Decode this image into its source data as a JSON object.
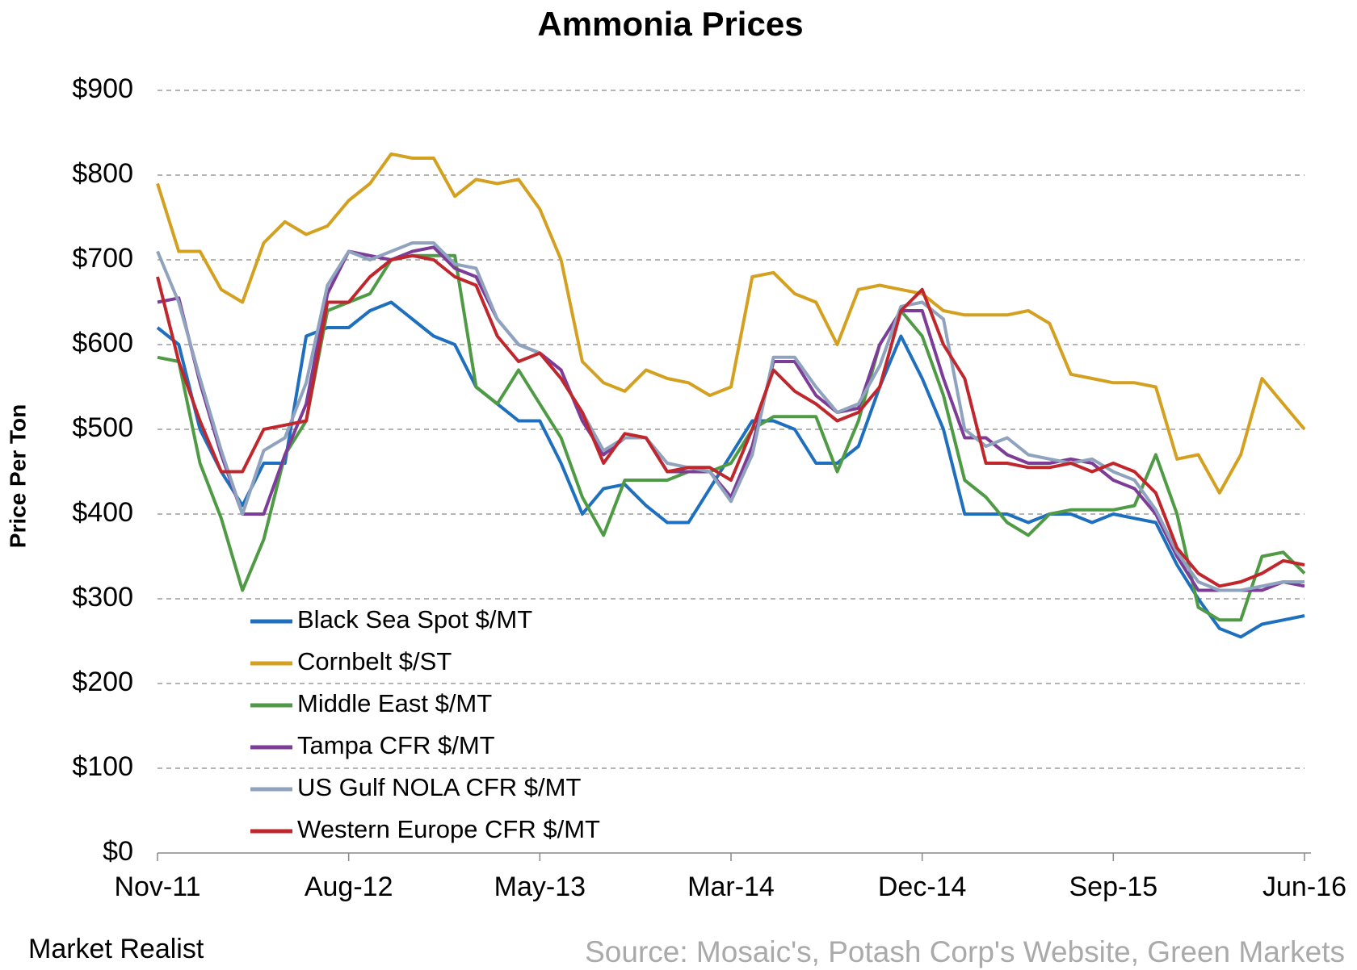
{
  "chart_data": {
    "type": "line",
    "title": "Ammonia Prices",
    "y_label": "Price Per Ton",
    "brand": "Market Realist",
    "source": "Source: Mosaic's, Potash Corp's Website, Green Markets",
    "categories": [
      "Nov-11",
      null,
      null,
      null,
      null,
      null,
      null,
      null,
      null,
      "Aug-12",
      null,
      null,
      null,
      null,
      null,
      null,
      null,
      null,
      "May-13",
      null,
      null,
      null,
      null,
      null,
      null,
      null,
      null,
      "Mar-14",
      null,
      null,
      null,
      null,
      null,
      null,
      null,
      null,
      "Dec-14",
      null,
      null,
      null,
      null,
      null,
      null,
      null,
      null,
      "Sep-15",
      null,
      null,
      null,
      null,
      null,
      null,
      null,
      null,
      "Jun-16"
    ],
    "ylim": [
      0,
      900
    ],
    "yticks": [
      {
        "value": 0,
        "label": "$0"
      },
      {
        "value": 100,
        "label": "$100"
      },
      {
        "value": 200,
        "label": "$200"
      },
      {
        "value": 300,
        "label": "$300"
      },
      {
        "value": 400,
        "label": "$400"
      },
      {
        "value": 500,
        "label": "$500"
      },
      {
        "value": 600,
        "label": "$600"
      },
      {
        "value": 700,
        "label": "$700"
      },
      {
        "value": 800,
        "label": "$800"
      },
      {
        "value": 900,
        "label": "$900"
      }
    ],
    "grid": true,
    "series": [
      {
        "name": "Black Sea Spot $/MT",
        "color": "#1f6fbf",
        "values": [
          620,
          600,
          500,
          450,
          410,
          460,
          460,
          610,
          620,
          620,
          640,
          650,
          630,
          610,
          600,
          550,
          530,
          510,
          510,
          460,
          400,
          430,
          435,
          410,
          390,
          390,
          430,
          470,
          510,
          510,
          500,
          460,
          460,
          480,
          550,
          610,
          560,
          500,
          400,
          400,
          400,
          390,
          400,
          400,
          390,
          400,
          395,
          390,
          340,
          300,
          265,
          255,
          270,
          275,
          280
        ]
      },
      {
        "name": "Cornbelt $/ST",
        "color": "#d4a020",
        "values": [
          790,
          710,
          710,
          665,
          650,
          720,
          745,
          730,
          740,
          770,
          790,
          825,
          820,
          820,
          775,
          795,
          790,
          795,
          760,
          700,
          580,
          555,
          545,
          570,
          560,
          555,
          540,
          550,
          680,
          685,
          660,
          650,
          600,
          665,
          670,
          665,
          660,
          640,
          635,
          635,
          635,
          640,
          625,
          565,
          560,
          555,
          555,
          550,
          465,
          470,
          425,
          470,
          560,
          530,
          500
        ]
      },
      {
        "name": "Middle East $/MT",
        "color": "#4f9a44",
        "values": [
          585,
          580,
          460,
          395,
          310,
          370,
          470,
          510,
          640,
          650,
          660,
          700,
          705,
          705,
          705,
          550,
          530,
          570,
          530,
          490,
          420,
          375,
          440,
          440,
          440,
          450,
          450,
          460,
          500,
          515,
          515,
          515,
          450,
          510,
          600,
          640,
          610,
          540,
          440,
          420,
          390,
          375,
          400,
          405,
          405,
          405,
          410,
          470,
          400,
          290,
          275,
          275,
          350,
          355,
          330
        ]
      },
      {
        "name": "Tampa CFR $/MT",
        "color": "#7d3c98",
        "values": [
          650,
          655,
          555,
          470,
          400,
          400,
          470,
          530,
          660,
          710,
          705,
          700,
          710,
          715,
          690,
          680,
          630,
          600,
          590,
          570,
          510,
          470,
          490,
          490,
          450,
          450,
          450,
          420,
          480,
          580,
          580,
          540,
          520,
          525,
          600,
          640,
          640,
          560,
          490,
          490,
          470,
          460,
          460,
          465,
          460,
          440,
          430,
          400,
          350,
          310,
          310,
          310,
          310,
          320,
          315
        ]
      },
      {
        "name": "US Gulf NOLA CFR $/MT",
        "color": "#8fa3bf",
        "values": [
          710,
          650,
          560,
          475,
          400,
          475,
          490,
          555,
          670,
          710,
          700,
          710,
          720,
          720,
          695,
          690,
          630,
          600,
          590,
          560,
          520,
          475,
          490,
          490,
          460,
          455,
          450,
          415,
          470,
          585,
          585,
          550,
          520,
          530,
          575,
          645,
          650,
          630,
          500,
          480,
          490,
          470,
          465,
          460,
          465,
          450,
          440,
          405,
          355,
          320,
          310,
          310,
          315,
          320,
          320
        ]
      },
      {
        "name": "Western Europe CFR $/MT",
        "color": "#c0272d",
        "values": [
          680,
          580,
          510,
          450,
          450,
          500,
          505,
          510,
          650,
          650,
          680,
          700,
          705,
          700,
          680,
          670,
          610,
          580,
          590,
          560,
          520,
          460,
          495,
          490,
          450,
          455,
          455,
          440,
          500,
          570,
          545,
          530,
          510,
          520,
          550,
          640,
          665,
          600,
          560,
          460,
          460,
          455,
          455,
          460,
          450,
          460,
          450,
          425,
          360,
          330,
          315,
          320,
          330,
          345,
          340
        ]
      }
    ]
  }
}
